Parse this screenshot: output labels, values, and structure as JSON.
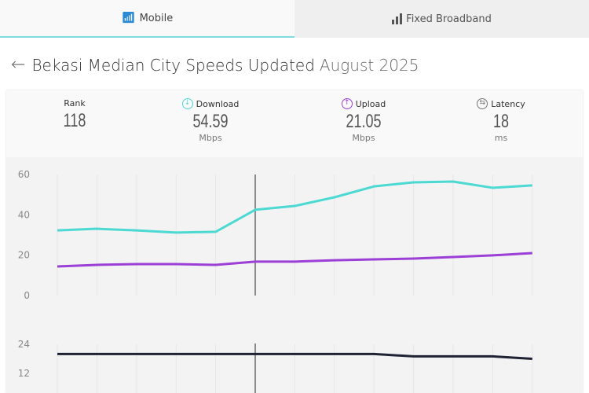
{
  "tabs": [
    {
      "label": "Mobile",
      "icon": "wifi-icon",
      "active": true
    },
    {
      "label": "Fixed Broadband",
      "icon": "signal-bars-icon",
      "active": false
    }
  ],
  "header": {
    "title": "Bekasi Median City Speeds Updated",
    "date": "August 2025"
  },
  "stats": {
    "rank": {
      "label": "Rank",
      "value": "118"
    },
    "download": {
      "label": "Download",
      "value": "54.59",
      "unit": "Mbps"
    },
    "upload": {
      "label": "Upload",
      "value": "21.05",
      "unit": "Mbps"
    },
    "latency": {
      "label": "Latency",
      "value": "18",
      "unit": "ms"
    }
  },
  "colors": {
    "download": "#4dd9d3",
    "upload": "#9b3fd6",
    "latency": "#1e2233",
    "accent": "#7fdbe0"
  },
  "chart_data": [
    {
      "type": "line",
      "ylim": [
        0,
        60
      ],
      "yticks": [
        "0",
        "20",
        "40",
        "60"
      ],
      "grid": true,
      "series": [
        {
          "key": "download",
          "values": [
            32.3,
            33.1,
            32.3,
            31.2,
            31.6,
            42.5,
            44.4,
            48.7,
            54.1,
            56.1,
            56.5,
            53.4,
            54.59
          ]
        },
        {
          "key": "upload",
          "values": [
            14.4,
            15.2,
            15.6,
            15.6,
            15.2,
            16.8,
            16.8,
            17.5,
            17.9,
            18.3,
            19.1,
            19.9,
            21.05
          ]
        }
      ]
    },
    {
      "type": "line",
      "ylim": [
        0,
        24
      ],
      "yticks": [
        "12",
        "24"
      ],
      "grid": true,
      "series": [
        {
          "key": "latency",
          "values": [
            20,
            20,
            20,
            20,
            20,
            20,
            20,
            20,
            20,
            19,
            19,
            19,
            18
          ]
        }
      ]
    }
  ]
}
